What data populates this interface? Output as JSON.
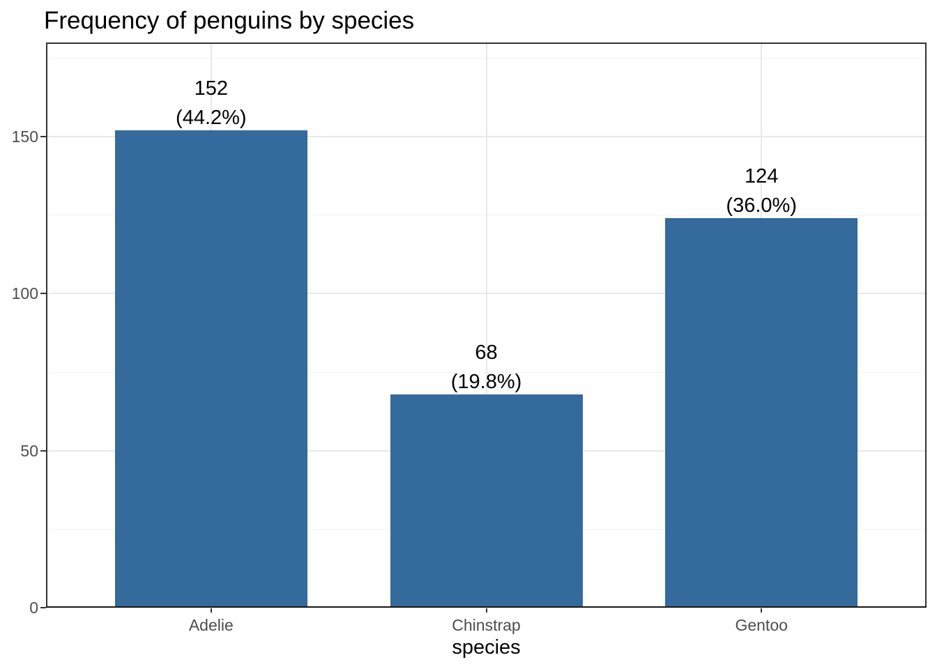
{
  "chart_data": {
    "type": "bar",
    "title": "Frequency of penguins by species",
    "xlabel": "species",
    "ylabel": "",
    "categories": [
      "Adelie",
      "Chinstrap",
      "Gentoo"
    ],
    "values": [
      152,
      68,
      124
    ],
    "percents": [
      44.2,
      19.8,
      36.0
    ],
    "bar_label_lines": [
      [
        "152",
        "(44.2%)"
      ],
      [
        "68",
        "(19.8%)"
      ],
      [
        "124",
        "(36.0%)"
      ]
    ],
    "ylim": [
      0,
      180
    ],
    "y_major_ticks": [
      0,
      50,
      100,
      150
    ],
    "y_minor_ticks": [
      25,
      75,
      125,
      175
    ],
    "grid": "horizontal major+minor, vertical major at category centers",
    "legend": "none",
    "colors": {
      "bar_fill": "#346A9C",
      "panel_background": "#ffffff",
      "panel_border": "#333333",
      "axis_line": "#1a1a1a",
      "grid_major": "#E8E8E8",
      "grid_minor": "#F2F2F2",
      "axis_text": "#4d4d4d",
      "tick_mark": "#333333",
      "title_text": "#000000",
      "bar_label_text": "#000000"
    }
  }
}
